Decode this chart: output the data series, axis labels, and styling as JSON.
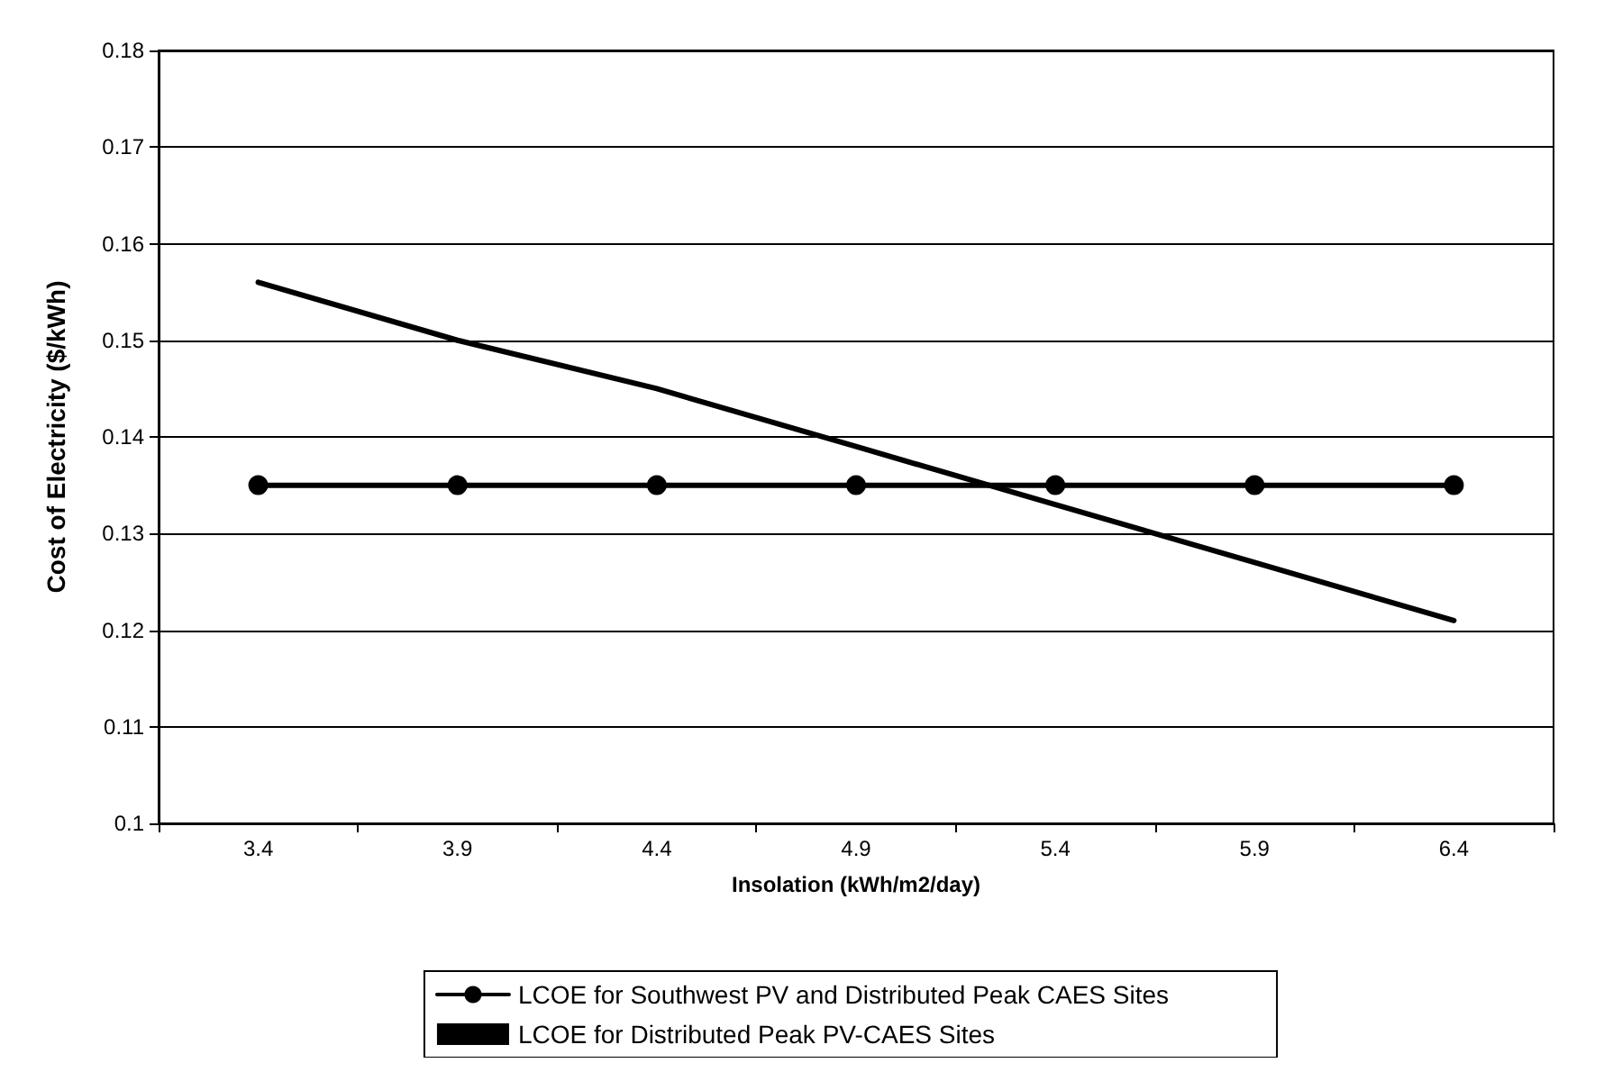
{
  "chart_data": {
    "type": "line",
    "xlabel": "Insolation (kWh/m2/day)",
    "ylabel": "Cost of Electricity ($/kWh)",
    "categories": [
      "3.4",
      "3.9",
      "4.4",
      "4.9",
      "5.4",
      "5.9",
      "6.4"
    ],
    "series": [
      {
        "name": "LCOE for Southwest PV and Distributed Peak CAES Sites",
        "color": "#000000",
        "marker": "circle",
        "values": [
          0.135,
          0.135,
          0.135,
          0.135,
          0.135,
          0.135,
          0.135
        ]
      },
      {
        "name": "LCOE for Distributed Peak PV-CAES Sites",
        "color": "#000000",
        "marker": "none",
        "values": [
          0.156,
          0.15,
          0.145,
          0.139,
          0.133,
          0.127,
          0.121
        ]
      }
    ],
    "ylim": [
      0.1,
      0.18
    ],
    "yticks": [
      0.1,
      0.11,
      0.12,
      0.13,
      0.14,
      0.15,
      0.16,
      0.17,
      0.18
    ],
    "grid": "y",
    "legend": "bottom",
    "line_style": "solid"
  }
}
